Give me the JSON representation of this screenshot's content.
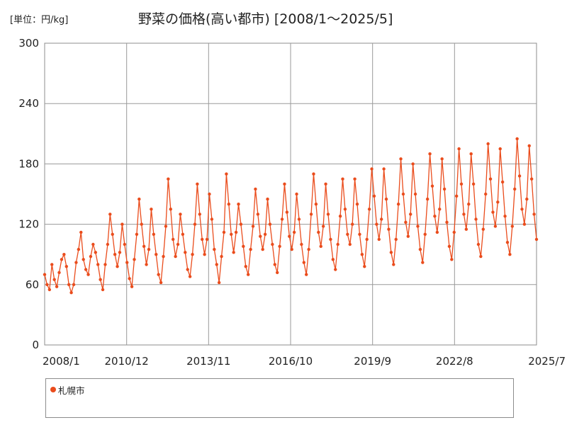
{
  "unit_label": "[単位：円/kg]",
  "chart_data": {
    "type": "line",
    "title": "野菜の価格(高い都市) [2008/1～2025/5]",
    "xlabel": "",
    "ylabel": "",
    "ylim": [
      0,
      300
    ],
    "yticks": [
      0,
      60,
      120,
      180,
      240,
      300
    ],
    "xlim": [
      2008.0,
      2025.5
    ],
    "x_tick_labels": [
      "2008/1",
      "2010/12",
      "2013/11",
      "2016/10",
      "2019/9",
      "2022/8",
      "2025/7"
    ],
    "x_tick_values": [
      2008.0,
      2010.917,
      2013.833,
      2016.75,
      2019.667,
      2022.583,
      2025.5
    ],
    "grid": true,
    "legend_position": "bottom",
    "series": [
      {
        "name": "札幌市",
        "color": "#ea4c1c",
        "values": [
          70,
          60,
          55,
          80,
          65,
          58,
          72,
          85,
          90,
          78,
          60,
          52,
          60,
          82,
          95,
          112,
          85,
          75,
          70,
          88,
          100,
          92,
          80,
          65,
          55,
          80,
          100,
          130,
          110,
          90,
          78,
          92,
          120,
          100,
          82,
          66,
          58,
          85,
          110,
          145,
          120,
          98,
          80,
          95,
          135,
          110,
          90,
          70,
          62,
          88,
          118,
          165,
          135,
          105,
          88,
          100,
          130,
          110,
          92,
          75,
          68,
          90,
          120,
          160,
          130,
          105,
          90,
          105,
          150,
          125,
          95,
          80,
          62,
          88,
          112,
          170,
          140,
          110,
          92,
          112,
          140,
          120,
          98,
          78,
          70,
          95,
          118,
          155,
          130,
          108,
          95,
          110,
          145,
          120,
          100,
          80,
          72,
          98,
          125,
          160,
          132,
          108,
          95,
          112,
          150,
          125,
          100,
          82,
          70,
          95,
          130,
          170,
          140,
          112,
          98,
          118,
          160,
          130,
          105,
          85,
          75,
          100,
          128,
          165,
          135,
          110,
          100,
          120,
          165,
          140,
          110,
          90,
          78,
          105,
          135,
          175,
          148,
          120,
          105,
          125,
          175,
          145,
          115,
          92,
          80,
          105,
          140,
          185,
          150,
          122,
          108,
          130,
          180,
          150,
          118,
          95,
          82,
          110,
          145,
          190,
          158,
          128,
          112,
          135,
          185,
          155,
          122,
          98,
          85,
          112,
          148,
          195,
          160,
          130,
          115,
          140,
          190,
          160,
          125,
          100,
          88,
          115,
          150,
          200,
          165,
          132,
          118,
          142,
          195,
          162,
          128,
          102,
          90,
          118,
          155,
          205,
          168,
          135,
          120,
          145,
          198,
          165,
          130,
          105
        ]
      }
    ]
  }
}
